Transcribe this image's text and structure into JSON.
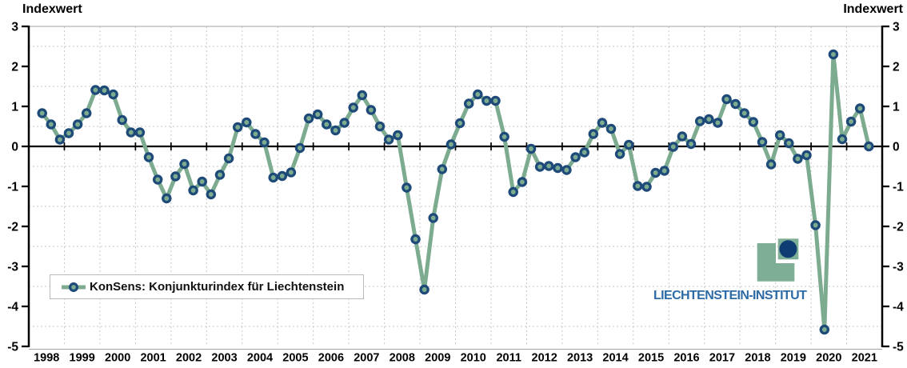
{
  "titles": {
    "left": "Indexwert",
    "right": "Indexwert"
  },
  "legend": {
    "label": "KonSens: Konjunkturindex für Liechtenstein"
  },
  "logo": {
    "text": "LIECHTENSTEIN-INSTITUT"
  },
  "colors": {
    "line": "#7dab90",
    "marker_ring": "#1d4a78",
    "axis": "#000000",
    "grid": "#c7c7c7",
    "plot_border": "#a3a3a3",
    "logo_green": "#7fae97",
    "logo_navy": "#0d3d73",
    "logo_text": "#2d6ba6"
  },
  "chart_data": {
    "type": "line",
    "title": "",
    "ylabel": "Indexwert",
    "ylim": [
      -5,
      3
    ],
    "y_ticks": [
      3,
      2,
      1,
      0,
      -1,
      -2,
      -3,
      -4,
      -5
    ],
    "half_unit_gridlines": [
      2.5,
      1.5,
      0.5,
      -0.5,
      -1.5,
      -2.5,
      -3.5,
      -4.5
    ],
    "grid": "dashed",
    "legend_position": "bottom-left",
    "year_labels": [
      "1998",
      "1999",
      "2000",
      "2001",
      "2002",
      "2003",
      "2004",
      "2005",
      "2006",
      "2007",
      "2008",
      "2009",
      "2010",
      "2011",
      "2012",
      "2013",
      "2014",
      "2015",
      "2016",
      "2017",
      "2018",
      "2019",
      "2020",
      "2021"
    ],
    "series": [
      {
        "name": "KonSens: Konjunkturindex für Liechtenstein",
        "x_start": "1998Q2",
        "x_end": "2021Q3",
        "quarters": [
          "1998Q2",
          "1998Q3",
          "1998Q4",
          "1999Q1",
          "1999Q2",
          "1999Q3",
          "1999Q4",
          "2000Q1",
          "2000Q2",
          "2000Q3",
          "2000Q4",
          "2001Q1",
          "2001Q2",
          "2001Q3",
          "2001Q4",
          "2002Q1",
          "2002Q2",
          "2002Q3",
          "2002Q4",
          "2003Q1",
          "2003Q2",
          "2003Q3",
          "2003Q4",
          "2004Q1",
          "2004Q2",
          "2004Q3",
          "2004Q4",
          "2005Q1",
          "2005Q2",
          "2005Q3",
          "2005Q4",
          "2006Q1",
          "2006Q2",
          "2006Q3",
          "2006Q4",
          "2007Q1",
          "2007Q2",
          "2007Q3",
          "2007Q4",
          "2008Q1",
          "2008Q2",
          "2008Q3",
          "2008Q4",
          "2009Q1",
          "2009Q2",
          "2009Q3",
          "2009Q4",
          "2010Q1",
          "2010Q2",
          "2010Q3",
          "2010Q4",
          "2011Q1",
          "2011Q2",
          "2011Q3",
          "2011Q4",
          "2012Q1",
          "2012Q2",
          "2012Q3",
          "2012Q4",
          "2013Q1",
          "2013Q2",
          "2013Q3",
          "2013Q4",
          "2014Q1",
          "2014Q2",
          "2014Q3",
          "2014Q4",
          "2015Q1",
          "2015Q2",
          "2015Q3",
          "2015Q4",
          "2016Q1",
          "2016Q2",
          "2016Q3",
          "2016Q4",
          "2017Q1",
          "2017Q2",
          "2017Q3",
          "2017Q4",
          "2018Q1",
          "2018Q2",
          "2018Q3",
          "2018Q4",
          "2019Q1",
          "2019Q2",
          "2019Q3",
          "2019Q4",
          "2020Q1",
          "2020Q2",
          "2020Q3",
          "2020Q4",
          "2021Q1",
          "2021Q2",
          "2021Q3"
        ],
        "values": [
          0.83,
          0.55,
          0.17,
          0.33,
          0.55,
          0.83,
          1.41,
          1.4,
          1.3,
          0.66,
          0.35,
          0.35,
          -0.27,
          -0.83,
          -1.3,
          -0.75,
          -0.44,
          -1.1,
          -0.88,
          -1.2,
          -0.71,
          -0.3,
          0.48,
          0.6,
          0.31,
          0.1,
          -0.78,
          -0.74,
          -0.65,
          -0.04,
          0.7,
          0.8,
          0.55,
          0.4,
          0.59,
          0.97,
          1.28,
          0.91,
          0.5,
          0.17,
          0.28,
          -1.03,
          -2.32,
          -3.58,
          -1.79,
          -0.57,
          0.05,
          0.58,
          1.07,
          1.3,
          1.14,
          1.14,
          0.24,
          -1.14,
          -0.89,
          -0.06,
          -0.51,
          -0.49,
          -0.54,
          -0.59,
          -0.27,
          -0.15,
          0.31,
          0.59,
          0.44,
          -0.19,
          0.04,
          -0.99,
          -1.01,
          -0.66,
          -0.61,
          -0.01,
          0.25,
          0.06,
          0.63,
          0.68,
          0.59,
          1.18,
          1.06,
          0.83,
          0.61,
          0.11,
          -0.45,
          0.28,
          0.08,
          -0.31,
          -0.22,
          -1.97,
          -4.58,
          2.3,
          0.18,
          0.62,
          0.95,
          0.0
        ]
      }
    ]
  }
}
